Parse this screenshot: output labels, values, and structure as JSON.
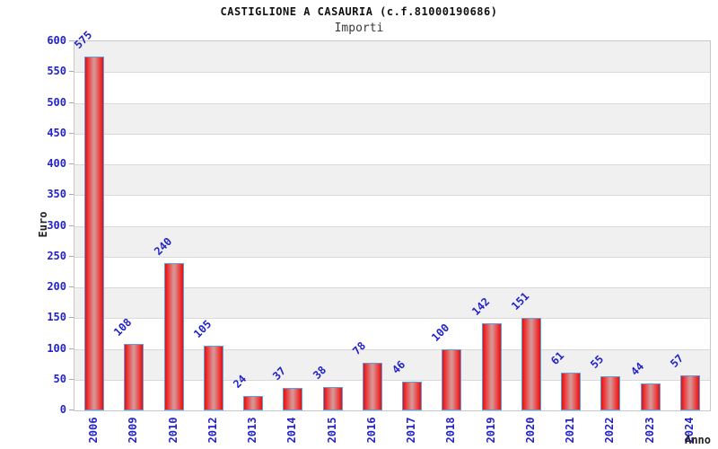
{
  "title": "CASTIGLIONE A CASAURIA (c.f.81000190686)",
  "subtitle": "Importi",
  "axis": {
    "y_title": "Euro",
    "x_title": "Anno"
  },
  "colors": {
    "label_blue": "#2323c8",
    "bar_red_edge": "#db1414",
    "bar_red_center": "#d89292",
    "bar_border_blue": "#5f9ddf",
    "band_gray": "#f0f0f0",
    "band_white": "#ffffff",
    "grid_line": "#d9d9d9",
    "plot_border": "#c8c8c8",
    "title_text": "#111111"
  },
  "chart_data": {
    "type": "bar",
    "title": "CASTIGLIONE A CASAURIA (c.f.81000190686)",
    "subtitle": "Importi",
    "xlabel": "Anno",
    "ylabel": "Euro",
    "categories": [
      "2006",
      "2009",
      "2010",
      "2012",
      "2013",
      "2014",
      "2015",
      "2016",
      "2017",
      "2018",
      "2019",
      "2020",
      "2021",
      "2022",
      "2023",
      "2024"
    ],
    "values": [
      575,
      108,
      240,
      105,
      24,
      37,
      38,
      78,
      46,
      100,
      142,
      151,
      61,
      55,
      44,
      57
    ],
    "ylim": [
      0,
      600
    ],
    "ytick_step": 50,
    "ytick_labels": [
      "0",
      "50",
      "100",
      "150",
      "200",
      "250",
      "300",
      "350",
      "400",
      "450",
      "500",
      "550",
      "600"
    ],
    "grid": "horizontal-bands-alternating",
    "legend": "none",
    "bar_labels_rotation_deg": -45,
    "xtick_rotation_deg": -90
  }
}
